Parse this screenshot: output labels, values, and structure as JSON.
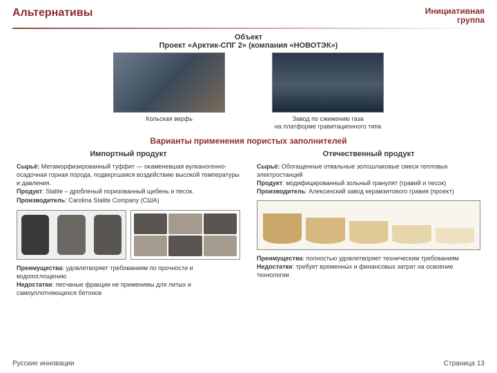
{
  "header": {
    "title": "Альтернативы",
    "corner_l1": "Инициативная",
    "corner_l2": "группа"
  },
  "object": {
    "label": "Объект",
    "name": "Проект «Арктик-СПГ 2» (компания «НОВОТЭК»)",
    "img1_caption": "Кольская верфь",
    "img2_caption_l1": "Завод по сжижению газа",
    "img2_caption_l2": "на платформе гравитационного типа"
  },
  "section_title": "Варианты применения пористых заполнителей",
  "left": {
    "head": "Импортный продукт",
    "raw_label": "Сырьё:",
    "raw": " Метаморфизированный туффит — окаменевшая вулканогенно-осадочная горная порода, подвергшаяся воздействию высокой температуры и давления.",
    "prod_label": "Продукт",
    "prod": ": Stalite – дробленый поризованный щебень и песок.",
    "maker_label": "Производитель",
    "maker": ": Carolina Stalite Company (США)",
    "adv_label": "Преимущества",
    "adv": ": удовлетворяет требованиям по прочности и водопоглощению",
    "dis_label": "Недостатки",
    "dis": ": песчаные фракции не применимы для литых и самоуплотняющихся бетонов"
  },
  "right": {
    "head": "Отечественный продукт",
    "raw_label": "Сырьё:",
    "raw": " Обогащенные отвальные золошлаковые смеси тепловых электростанций",
    "prod_label": "Продукт",
    "prod": ": модифицированный зольный гранулят (гравий и песок)",
    "maker_label": "Производитель",
    "maker": ": Алексинский завод керамзитового гравия (проект)",
    "adv_label": "Преимущества",
    "adv": ": полностью удовлетворяет техническим требованиям",
    "dis_label": "Недостатки",
    "dis": ": требует временны́х и финансовых затрат на освоение технологии"
  },
  "footer": {
    "left": "Русские инновации",
    "right": "Страница 13"
  }
}
